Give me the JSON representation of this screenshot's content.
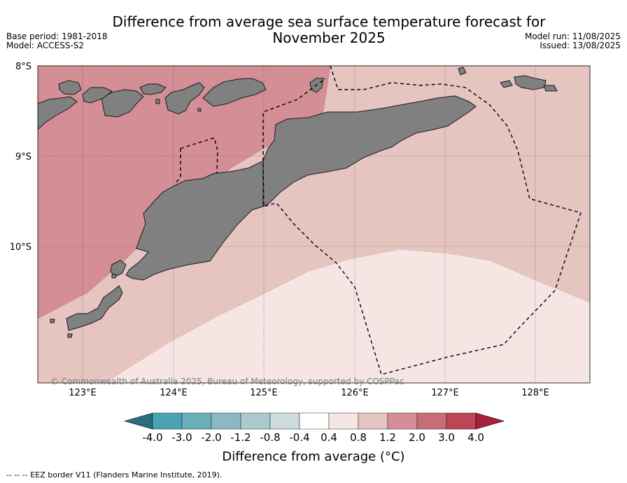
{
  "title_line1": "Difference from average sea surface temperature forecast for",
  "title_line2": "November 2025",
  "base_period": "Base period: 1981-2018",
  "model": "Model: ACCESS-S2",
  "model_run": "Model run: 11/08/2025",
  "issued": "Issued: 13/08/2025",
  "lat_labels": [
    "8°S",
    "9°S",
    "10°S"
  ],
  "lon_labels": [
    "123°E",
    "124°E",
    "125°E",
    "126°E",
    "127°E",
    "128°E"
  ],
  "copyright": "© Commonwealth of Australia 2025, Bureau of Meteorology, supported by COSPPac",
  "colorbar": {
    "labels": [
      "-4.0",
      "-3.0",
      "-2.0",
      "-1.2",
      "-0.8",
      "-0.4",
      "0.4",
      "0.8",
      "1.2",
      "2.0",
      "3.0",
      "4.0"
    ],
    "colors": [
      "#2b6f7e",
      "#4aa3b2",
      "#6aaeba",
      "#8bb9c3",
      "#aacace",
      "#ccdcdc",
      "#ffffff",
      "#f5e6e4",
      "#e6c4c0",
      "#d48e95",
      "#c86c75",
      "#bc4655",
      "#a8203a"
    ],
    "title": "Difference from average (°C)"
  },
  "footnote": "-- -- -- EEZ border V11 (Flanders Marine Institute, 2019).",
  "map_colors": {
    "land": "#808080",
    "anomaly_1_2_to_2_0": "#d48e95",
    "anomaly_0_8_to_1_2": "#e6c4c0",
    "anomaly_0_4_to_0_8": "#f5e6e4"
  }
}
